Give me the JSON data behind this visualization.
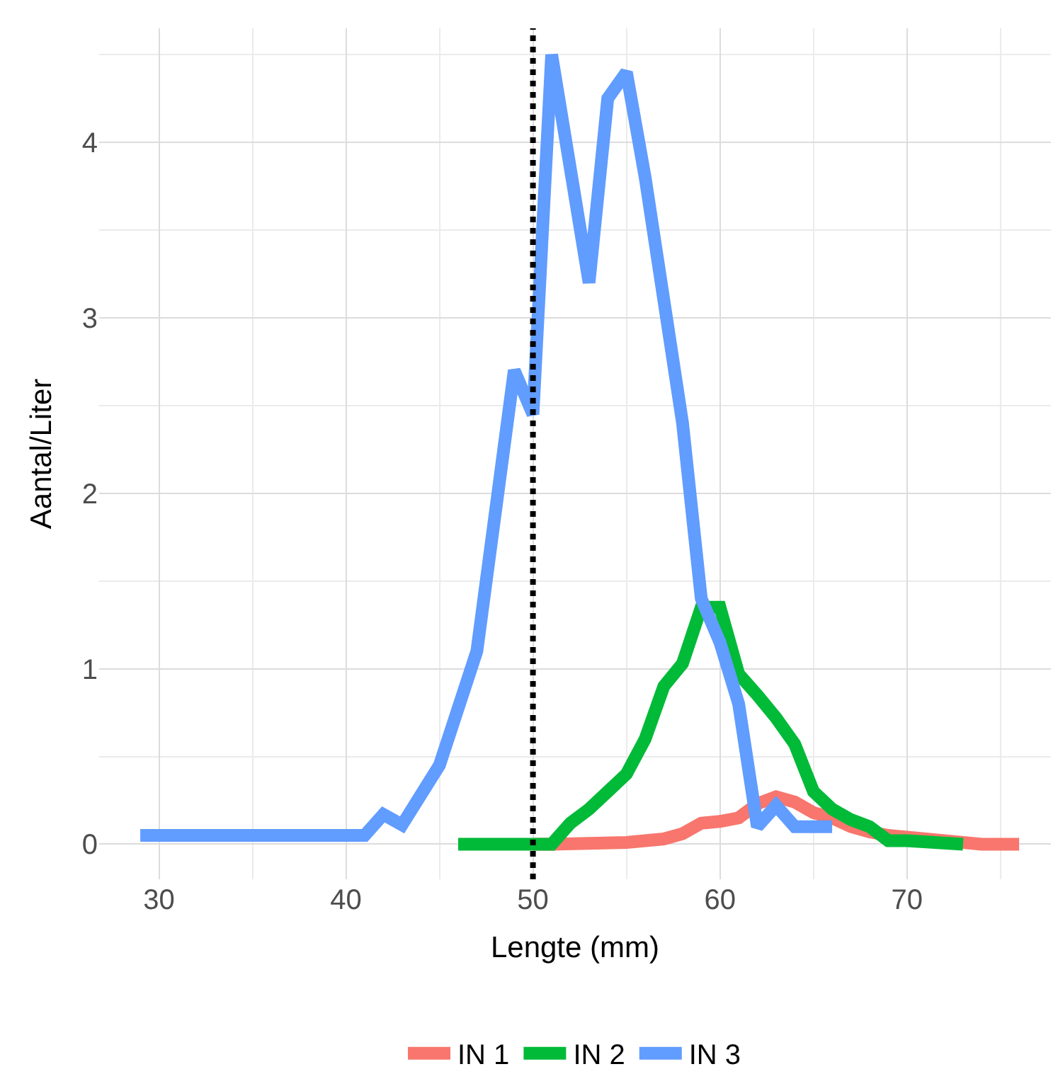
{
  "chart_data": {
    "type": "line",
    "xlabel": "Lengte (mm)",
    "ylabel": "Aantal/Liter",
    "xlim": [
      26.8,
      77.7
    ],
    "ylim": [
      -0.2,
      4.65
    ],
    "xticks": [
      30,
      40,
      50,
      60,
      70
    ],
    "yticks": [
      0,
      1,
      2,
      3,
      4
    ],
    "grid": true,
    "legend": "bottom",
    "line_style": "solid",
    "marker": "none",
    "ref_lines": [
      {
        "axis": "x",
        "value": 50,
        "color": "#000000",
        "line_style": "dotted"
      }
    ],
    "series": [
      {
        "name": "IN 1",
        "color": "#f8766d",
        "x": [
          50,
          51,
          55,
          57,
          58,
          59,
          60,
          61,
          62,
          63,
          64,
          65,
          66,
          67,
          68,
          69,
          70,
          72,
          74,
          76
        ],
        "values": [
          0,
          0,
          0.01,
          0.03,
          0.06,
          0.12,
          0.13,
          0.15,
          0.23,
          0.27,
          0.24,
          0.18,
          0.15,
          0.1,
          0.07,
          0.05,
          0.04,
          0.02,
          0,
          0
        ]
      },
      {
        "name": "IN 2",
        "color": "#00ba38",
        "x": [
          46,
          50,
          51,
          52,
          53,
          54,
          55,
          56,
          57,
          58,
          59,
          60,
          61,
          62,
          63,
          64,
          65,
          66,
          67,
          68,
          69,
          70,
          73
        ],
        "values": [
          0,
          0,
          0,
          0.12,
          0.2,
          0.3,
          0.4,
          0.6,
          0.9,
          1.03,
          1.35,
          1.35,
          0.97,
          0.85,
          0.72,
          0.57,
          0.3,
          0.2,
          0.14,
          0.1,
          0.02,
          0.02,
          0
        ]
      },
      {
        "name": "IN 3",
        "color": "#619cff",
        "x": [
          29,
          41,
          42,
          43,
          45,
          47,
          49,
          50,
          51,
          53,
          54,
          55,
          56,
          58,
          59,
          60,
          61,
          62,
          63,
          64,
          66
        ],
        "values": [
          0.05,
          0.05,
          0.17,
          0.11,
          0.45,
          1.1,
          2.7,
          2.45,
          4.5,
          3.2,
          4.25,
          4.4,
          3.8,
          2.4,
          1.4,
          1.15,
          0.8,
          0.1,
          0.22,
          0.1,
          0.1
        ]
      }
    ]
  }
}
